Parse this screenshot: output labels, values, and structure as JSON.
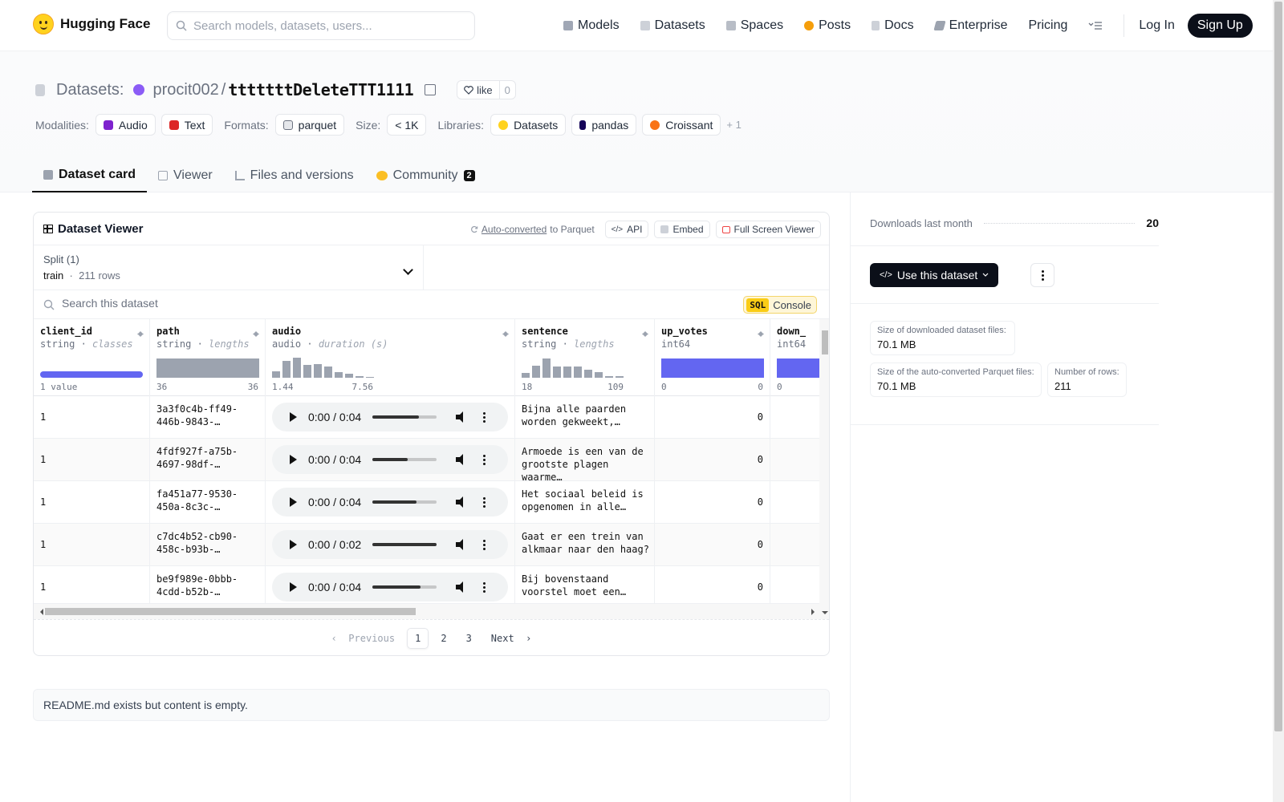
{
  "brand": {
    "name": "Hugging Face"
  },
  "search": {
    "placeholder": "Search models, datasets, users..."
  },
  "nav": {
    "links": [
      "Models",
      "Datasets",
      "Spaces",
      "Posts",
      "Docs",
      "Enterprise",
      "Pricing"
    ],
    "login": "Log In",
    "signup": "Sign Up"
  },
  "repo": {
    "section": "Datasets:",
    "owner": "procit002",
    "sep": "/",
    "name": "tttttttDeleteTTT1111",
    "like_label": "like",
    "like_count": "0"
  },
  "tags": {
    "modalities_label": "Modalities:",
    "modalities": [
      "Audio",
      "Text"
    ],
    "formats_label": "Formats:",
    "formats": [
      "parquet"
    ],
    "size_label": "Size:",
    "size": "< 1K",
    "libraries_label": "Libraries:",
    "libraries": [
      "Datasets",
      "pandas",
      "Croissant"
    ],
    "more": "+ 1"
  },
  "tabs": [
    {
      "label": "Dataset card"
    },
    {
      "label": "Viewer"
    },
    {
      "label": "Files and versions"
    },
    {
      "label": "Community",
      "badge": "2"
    }
  ],
  "viewer": {
    "title": "Dataset Viewer",
    "auto_converted": "Auto-converted",
    "to_parquet": "to Parquet",
    "api": "API",
    "embed": "Embed",
    "fullscreen": "Full Screen Viewer",
    "split_label": "Split (1)",
    "split_name": "train",
    "split_rows": "211 rows",
    "search_placeholder": "Search this dataset",
    "sql_tag": "SQL",
    "sql_label": "Console",
    "columns": [
      {
        "name": "client_id",
        "type": "string",
        "stat": "classes",
        "min": "1 value",
        "max": ""
      },
      {
        "name": "path",
        "type": "string",
        "stat": "lengths",
        "min": "36",
        "max": "36"
      },
      {
        "name": "audio",
        "type": "audio",
        "stat": "duration (s)",
        "min": "1.44",
        "max": "7.56"
      },
      {
        "name": "sentence",
        "type": "string",
        "stat": "lengths",
        "min": "18",
        "max": "109"
      },
      {
        "name": "up_votes",
        "type": "int64",
        "stat": "",
        "min": "0",
        "max": "0"
      },
      {
        "name": "down_",
        "type": "int64",
        "stat": "",
        "min": "0",
        "max": ""
      }
    ],
    "rows": [
      {
        "client_id": "1",
        "path": [
          "3a3f0c4b-ff49-",
          "446b-9843-…"
        ],
        "audio_time": "0:00 / 0:04",
        "audio_progress": 0.72,
        "sentence": [
          "Bijna alle paarden",
          "worden gekweekt,…"
        ],
        "up_votes": "0"
      },
      {
        "client_id": "1",
        "path": [
          "4fdf927f-a75b-",
          "4697-98df-…"
        ],
        "audio_time": "0:00 / 0:04",
        "audio_progress": 0.55,
        "sentence": [
          "Armoede is een van de",
          "grootste plagen waarme…"
        ],
        "up_votes": "0"
      },
      {
        "client_id": "1",
        "path": [
          "fa451a77-9530-",
          "450a-8c3c-…"
        ],
        "audio_time": "0:00 / 0:04",
        "audio_progress": 0.68,
        "sentence": [
          "Het sociaal beleid is",
          "opgenomen in alle…"
        ],
        "up_votes": "0"
      },
      {
        "client_id": "1",
        "path": [
          "c7dc4b52-cb90-",
          "458c-b93b-…"
        ],
        "audio_time": "0:00 / 0:02",
        "audio_progress": 1.0,
        "sentence": [
          "Gaat er een trein van",
          "alkmaar naar den haag?"
        ],
        "up_votes": "0"
      },
      {
        "client_id": "1",
        "path": [
          "be9f989e-0bbb-",
          "4cdd-b52b-…"
        ],
        "audio_time": "0:00 / 0:04",
        "audio_progress": 0.75,
        "sentence": [
          "Bij bovenstaand",
          "voorstel moet een…"
        ],
        "up_votes": "0"
      }
    ],
    "pager": {
      "previous": "Previous",
      "pages": [
        "1",
        "2",
        "3"
      ],
      "next": "Next"
    }
  },
  "readme": "README.md exists but content is empty.",
  "sidebar": {
    "downloads_label": "Downloads last month",
    "downloads_value": "20",
    "use_dataset": "Use this dataset",
    "size_downloaded_label": "Size of downloaded dataset files:",
    "size_downloaded": "70.1 MB",
    "size_parquet_label": "Size of the auto-converted Parquet files:",
    "size_parquet": "70.1 MB",
    "num_rows_label": "Number of rows:",
    "num_rows": "211"
  },
  "colors": {
    "accent_blue": "#6366f1",
    "histogram_gray": "#9ca3af",
    "signup_bg": "#0b0f19"
  }
}
